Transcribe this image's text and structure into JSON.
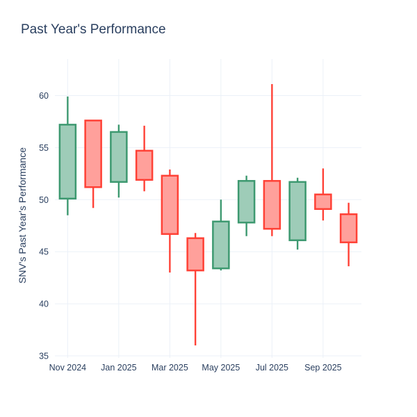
{
  "chart": {
    "title": "Past Year's Performance",
    "y_axis_title": "SNV's Past Year's Performance"
  },
  "chart_data": {
    "type": "candlestick",
    "title": "Past Year's Performance",
    "ylabel": "SNV's Past Year's Performance",
    "x": [
      "Nov 2024",
      "Dec 2024",
      "Jan 2025",
      "Feb 2025",
      "Mar 2025",
      "Apr 2025",
      "May 2025",
      "Jun 2025",
      "Jul 2025",
      "Aug 2025",
      "Sep 2025",
      "Oct 2025"
    ],
    "open": [
      50.1,
      57.6,
      51.7,
      54.7,
      52.3,
      46.3,
      43.4,
      47.8,
      51.8,
      46.1,
      50.5,
      48.6
    ],
    "high": [
      59.9,
      57.6,
      57.2,
      57.1,
      52.9,
      46.8,
      50.0,
      52.3,
      61.1,
      52.1,
      53.0,
      49.7
    ],
    "low": [
      48.5,
      49.2,
      50.2,
      50.8,
      43.0,
      36.0,
      43.2,
      46.5,
      46.5,
      45.2,
      48.0,
      43.6
    ],
    "close": [
      57.2,
      51.2,
      56.5,
      51.9,
      46.7,
      43.2,
      47.9,
      51.8,
      47.2,
      51.7,
      49.1,
      45.9
    ],
    "y_ticks": [
      35,
      40,
      45,
      50,
      55,
      60
    ],
    "x_tick_indices": [
      0,
      2,
      4,
      6,
      8,
      10
    ],
    "x_tick_labels": [
      "Nov 2024",
      "Jan 2025",
      "Mar 2025",
      "May 2025",
      "Jul 2025",
      "Sep 2025"
    ],
    "ylim": [
      34.8,
      63.5
    ],
    "grid": true,
    "legend": "none",
    "increasing_color": "#3D9970",
    "increasing_fill": "#9ECCB8",
    "decreasing_color": "#FF4136",
    "decreasing_fill": "#FFA09B",
    "grid_color": "#EBF0F8",
    "text_color": "#2a3f5f"
  }
}
